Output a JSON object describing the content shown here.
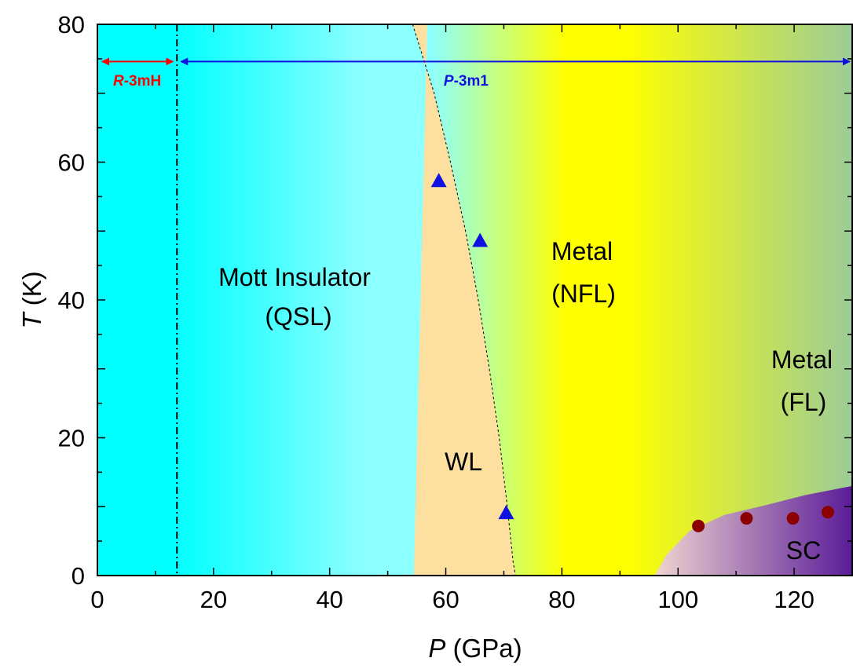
{
  "chart_data": {
    "type": "scatter",
    "xlabel": {
      "symbol": "P",
      "unit": "(GPa)"
    },
    "ylabel": {
      "symbol": "T",
      "unit": "(K)"
    },
    "xlim": [
      0,
      130
    ],
    "ylim": [
      0,
      80
    ],
    "x_ticks": [
      "0",
      "20",
      "40",
      "60",
      "80",
      "100",
      "120"
    ],
    "y_ticks": [
      "0",
      "20",
      "40",
      "60",
      "80"
    ],
    "grid": false,
    "phase_boundary_P": 13.7,
    "phase_labels": {
      "low": {
        "italic": "R",
        "rest": "-3mH",
        "color": "#ff0000"
      },
      "high": {
        "italic": "P",
        "rest": "-3m1",
        "color": "#1010e0"
      }
    },
    "regions": [
      {
        "lines": [
          "Mott Insulator",
          "(QSL)"
        ]
      },
      {
        "lines": [
          "Metal",
          "(NFL)"
        ]
      },
      {
        "lines": [
          "Metal",
          "(FL)"
        ]
      },
      {
        "lines": [
          "WL"
        ]
      },
      {
        "lines": [
          "SC"
        ]
      }
    ],
    "series": [
      {
        "marker": "triangle",
        "color": "#1010e0",
        "points": [
          [
            58.8,
            57.3
          ],
          [
            65.9,
            48.6
          ],
          [
            70.4,
            9.1
          ]
        ]
      },
      {
        "marker": "circle",
        "color": "#8b0000",
        "points": [
          [
            103.5,
            7.2
          ],
          [
            111.8,
            8.3
          ],
          [
            119.8,
            8.3
          ],
          [
            125.8,
            9.2
          ]
        ]
      }
    ],
    "crossover_line": [
      [
        54.3,
        80
      ],
      [
        58.0,
        70
      ],
      [
        60.8,
        60
      ],
      [
        63.4,
        50
      ],
      [
        65.6,
        40
      ],
      [
        67.5,
        30
      ],
      [
        69.2,
        20
      ],
      [
        70.6,
        10
      ],
      [
        71.6,
        2
      ],
      [
        72.0,
        0
      ]
    ],
    "sc_dome": [
      [
        96,
        0
      ],
      [
        98,
        3
      ],
      [
        102,
        6.5
      ],
      [
        108,
        8.8
      ],
      [
        115,
        10.2
      ],
      [
        122,
        11.7
      ],
      [
        130,
        13
      ]
    ],
    "colors": {
      "cyan": "#00ffff",
      "light_cyan": "#8cffff",
      "wl_region": "#fde0a0",
      "yellow": "#ffff00",
      "fl_region": "#9ccc98",
      "sc_light": "#f0d4d0",
      "sc_dark": "#5a1c98"
    }
  }
}
